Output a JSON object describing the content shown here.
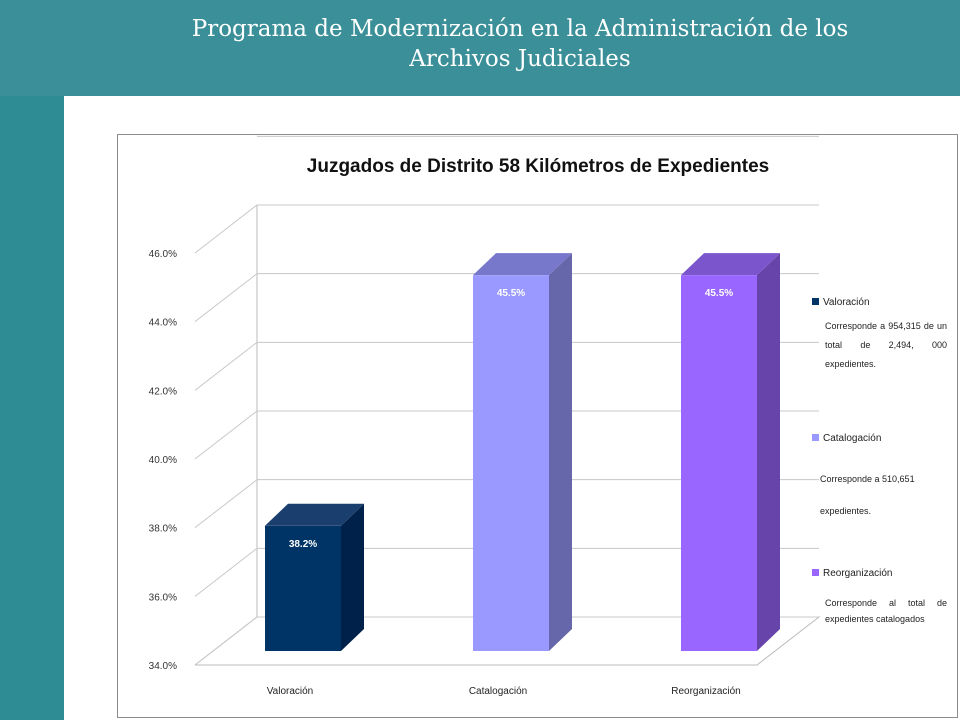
{
  "slide": {
    "title_line1": "Programa de Modernización en la Administración de los",
    "title_line2": "Archivos Judiciales"
  },
  "colors": {
    "background": "#2E8C95",
    "valoracion": "#003366",
    "catalogacion": "#9999FF",
    "reorganizacion": "#9966FF"
  },
  "legend": [
    {
      "label": "Valoración",
      "note": "Corresponde a 954,315 de un total de 2,494, 000 expedientes."
    },
    {
      "label": "Catalogación",
      "note_line1": "Corresponde a 510,651",
      "note_line2": "expedientes."
    },
    {
      "label": "Reorganización",
      "note": "Corresponde al total de expedientes catalogados"
    }
  ],
  "chart_data": {
    "type": "bar",
    "style": "3d-column",
    "title": "Juzgados de Distrito 58  Kilómetros de Expedientes",
    "categories": [
      "Valoración",
      "Catalogación",
      "Reorganización"
    ],
    "values": [
      38.2,
      45.5,
      45.5
    ],
    "data_labels": [
      "38.2%",
      "45.5%",
      "45.5%"
    ],
    "y_ticks": [
      34.0,
      36.0,
      38.0,
      40.0,
      42.0,
      44.0,
      46.0
    ],
    "y_tick_labels": [
      "34.0%",
      "36.0%",
      "38.0%",
      "40.0%",
      "42.0%",
      "44.0%",
      "46.0%"
    ],
    "ylim": [
      34,
      46
    ],
    "grid": true,
    "xlabel": "",
    "ylabel": "",
    "legend_position": "right"
  }
}
